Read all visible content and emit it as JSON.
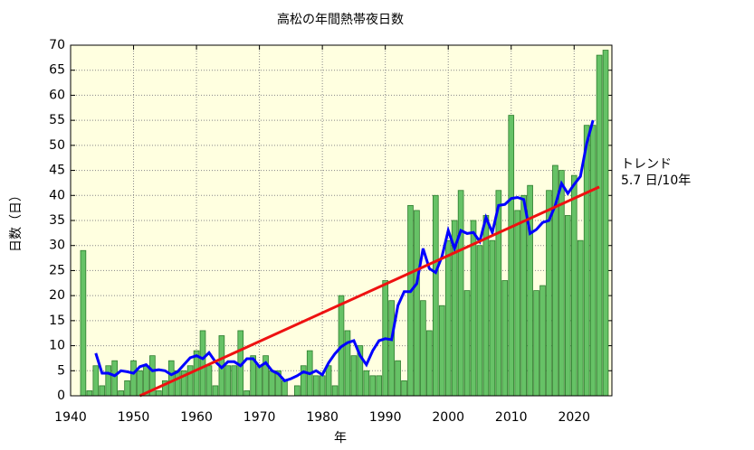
{
  "chart_data": {
    "type": "bar",
    "title": "高松の年間熱帯夜日数",
    "xlabel": "年",
    "ylabel": "日数（日）",
    "annotations": [
      "トレンド",
      "5.7 日/10年"
    ],
    "xlim": [
      1940,
      2026
    ],
    "xticks": [
      1940,
      1950,
      1960,
      1970,
      1980,
      1990,
      2000,
      2010,
      2020
    ],
    "ylim": [
      0,
      70
    ],
    "yticks": [
      0,
      5,
      10,
      15,
      20,
      25,
      30,
      35,
      40,
      45,
      50,
      55,
      60,
      65,
      70
    ],
    "grid": true,
    "background": "#ffffe0",
    "series": [
      {
        "type": "bar",
        "color": "#66c266",
        "x": [
          1942,
          1943,
          1944,
          1945,
          1946,
          1947,
          1948,
          1949,
          1950,
          1951,
          1952,
          1953,
          1954,
          1955,
          1956,
          1957,
          1958,
          1959,
          1960,
          1961,
          1962,
          1963,
          1964,
          1965,
          1966,
          1967,
          1968,
          1969,
          1970,
          1971,
          1972,
          1973,
          1974,
          1975,
          1976,
          1977,
          1978,
          1979,
          1980,
          1981,
          1982,
          1983,
          1984,
          1985,
          1986,
          1987,
          1988,
          1989,
          1990,
          1991,
          1992,
          1993,
          1994,
          1995,
          1996,
          1997,
          1998,
          1999,
          2000,
          2001,
          2002,
          2003,
          2004,
          2005,
          2006,
          2007,
          2008,
          2009,
          2010,
          2011,
          2012,
          2013,
          2014,
          2015,
          2016,
          2017,
          2018,
          2019,
          2020,
          2021,
          2022,
          2023,
          2024,
          2025
        ],
        "values": [
          29,
          1,
          6,
          2,
          6,
          7,
          1,
          3,
          7,
          5,
          6,
          8,
          1,
          3,
          7,
          5,
          5,
          6,
          9,
          13,
          6,
          2,
          12,
          6,
          6,
          13,
          1,
          8,
          6,
          8,
          5,
          5,
          3,
          0,
          2,
          6,
          9,
          4,
          4,
          6,
          2,
          20,
          13,
          8,
          10,
          5,
          4,
          4,
          23,
          19,
          7,
          3,
          38,
          37,
          19,
          13,
          40,
          18,
          31,
          35,
          41,
          21,
          35,
          30,
          36,
          31,
          41,
          23,
          56,
          37,
          40,
          42,
          21,
          22,
          41,
          46,
          45,
          36,
          44,
          31,
          54,
          54,
          68,
          69
        ]
      },
      {
        "type": "line",
        "color": "#0000ff",
        "x": [
          1944,
          1945,
          1946,
          1947,
          1948,
          1949,
          1950,
          1951,
          1952,
          1953,
          1954,
          1955,
          1956,
          1957,
          1958,
          1959,
          1960,
          1961,
          1962,
          1963,
          1964,
          1965,
          1966,
          1967,
          1968,
          1969,
          1970,
          1971,
          1972,
          1973,
          1974,
          1975,
          1976,
          1977,
          1978,
          1979,
          1980,
          1981,
          1982,
          1983,
          1984,
          1985,
          1986,
          1987,
          1988,
          1989,
          1990,
          1991,
          1992,
          1993,
          1994,
          1995,
          1996,
          1997,
          1998,
          1999,
          2000,
          2001,
          2002,
          2003,
          2004,
          2005,
          2006,
          2007,
          2008,
          2009,
          2010,
          2011,
          2012,
          2013,
          2014,
          2015,
          2016,
          2017,
          2018,
          2019,
          2020,
          2021,
          2022,
          2023
        ],
        "values": [
          8.5,
          4.5,
          4.5,
          4,
          5,
          4.8,
          4.5,
          5.8,
          6.2,
          5,
          5.2,
          5,
          4.2,
          4.8,
          6.2,
          7.6,
          8,
          7.4,
          8.6,
          6.8,
          5.6,
          6.8,
          6.8,
          6,
          7.4,
          7.4,
          5.8,
          6.6,
          5,
          4.4,
          3,
          3.4,
          4,
          4.8,
          4.4,
          5,
          4.2,
          6.6,
          8.4,
          9.8,
          10.6,
          11,
          8,
          6.2,
          9,
          11,
          11.4,
          11.2,
          18,
          20.8,
          20.8,
          22.4,
          29.4,
          25.4,
          24.6,
          27.8,
          33,
          29.4,
          33,
          32.4,
          32.6,
          30.8,
          35.6,
          32.6,
          38,
          38.2,
          39.4,
          39.6,
          39.2,
          32.4,
          33.2,
          34.6,
          35,
          38,
          42.4,
          40.4,
          42.2,
          43.8,
          50.4,
          55
        ]
      },
      {
        "type": "line",
        "color": "#ee1111",
        "x": [
          1951,
          2024
        ],
        "values": [
          0,
          41.7
        ]
      }
    ]
  }
}
